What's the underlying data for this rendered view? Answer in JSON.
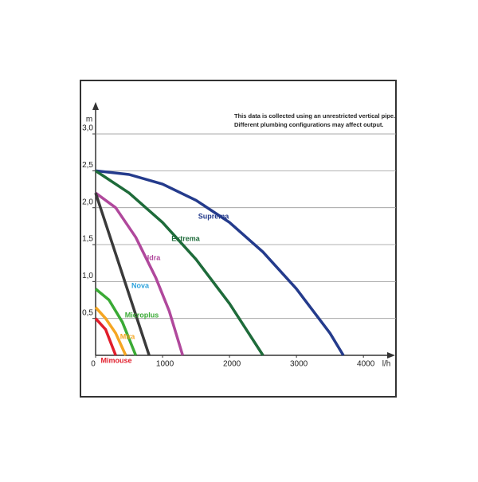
{
  "chart_data": {
    "type": "line",
    "note": [
      "This data is collected using an unrestricted vertical pipe.",
      "Different plumbing configurations may affect output."
    ],
    "y_label": "m",
    "x_label": "l/h",
    "xlim": [
      0,
      4450
    ],
    "ylim": [
      0,
      3.4
    ],
    "xticks": [
      0,
      1000,
      2000,
      3000,
      4000
    ],
    "yticks": [
      {
        "value": 0.5,
        "label": "0,5"
      },
      {
        "value": 1.0,
        "label": "1,0"
      },
      {
        "value": 1.5,
        "label": "1,5"
      },
      {
        "value": 2.0,
        "label": "2,0"
      },
      {
        "value": 2.5,
        "label": "2,5"
      },
      {
        "value": 3.0,
        "label": "3,0"
      }
    ],
    "grid": true,
    "series": [
      {
        "name": "Suprema",
        "color": "#243b8c",
        "label_color": "#243b8c",
        "x": [
          0,
          500,
          1000,
          1500,
          2000,
          2500,
          3000,
          3500,
          3700
        ],
        "values": [
          2.5,
          2.45,
          2.32,
          2.1,
          1.8,
          1.4,
          0.9,
          0.3,
          0
        ]
      },
      {
        "name": "Extrema",
        "color": "#1e6b3a",
        "label_color": "#1e6b3a",
        "x": [
          0,
          500,
          1000,
          1500,
          2000,
          2500
        ],
        "values": [
          2.5,
          2.2,
          1.8,
          1.3,
          0.7,
          0
        ]
      },
      {
        "name": "Idra",
        "color": "#b0489c",
        "label_color": "#b0489c",
        "x": [
          0,
          300,
          600,
          900,
          1100,
          1300
        ],
        "values": [
          2.2,
          2.0,
          1.6,
          1.05,
          0.6,
          0
        ]
      },
      {
        "name": "Nova",
        "color": "#3a3a3a",
        "label_color": "#2ea3dc",
        "x": [
          0,
          800
        ],
        "values": [
          2.2,
          0
        ]
      },
      {
        "name": "Microplus",
        "color": "#3aaa35",
        "label_color": "#3aaa35",
        "x": [
          0,
          200,
          400,
          600
        ],
        "values": [
          0.9,
          0.75,
          0.45,
          0
        ]
      },
      {
        "name": "Mira",
        "color": "#f5a623",
        "label_color": "#f5a623",
        "x": [
          0,
          150,
          300,
          450
        ],
        "values": [
          0.65,
          0.5,
          0.3,
          0
        ]
      },
      {
        "name": "Mimouse",
        "color": "#e11d2b",
        "label_color": "#e11d2b",
        "x": [
          0,
          150,
          300
        ],
        "values": [
          0.5,
          0.35,
          0
        ]
      }
    ]
  }
}
